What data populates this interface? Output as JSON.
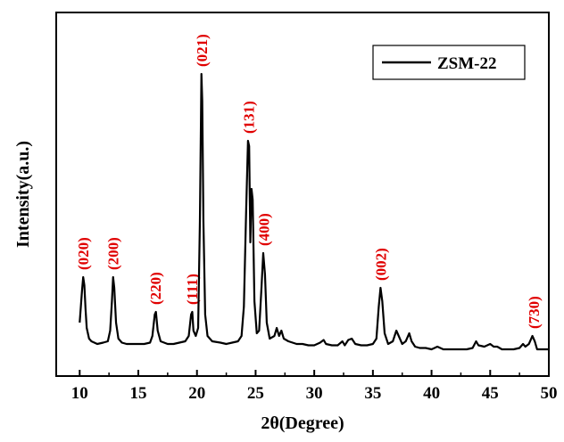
{
  "chart_data": {
    "type": "line",
    "xlabel": "2θ(Degree)",
    "ylabel": "Intensity(a.u.)",
    "xlim": [
      8,
      50
    ],
    "ylim": [
      -0.08,
      1.28
    ],
    "x_ticks": [
      10,
      15,
      20,
      25,
      30,
      35,
      40,
      45,
      50
    ],
    "y_ticks_shown": false,
    "grid": false,
    "legend_position": "top-right",
    "colors": {
      "line": "#000000",
      "annotation": "#e00000",
      "axes": "#000000"
    },
    "series": [
      {
        "name": "ZSM-22",
        "points": [
          [
            10.0,
            0.12
          ],
          [
            10.1,
            0.18
          ],
          [
            10.2,
            0.24
          ],
          [
            10.3,
            0.29
          ],
          [
            10.4,
            0.26
          ],
          [
            10.5,
            0.17
          ],
          [
            10.6,
            0.1
          ],
          [
            10.8,
            0.06
          ],
          [
            11.0,
            0.05
          ],
          [
            11.5,
            0.04
          ],
          [
            12.0,
            0.045
          ],
          [
            12.4,
            0.05
          ],
          [
            12.6,
            0.09
          ],
          [
            12.75,
            0.2
          ],
          [
            12.85,
            0.29
          ],
          [
            12.95,
            0.25
          ],
          [
            13.1,
            0.12
          ],
          [
            13.3,
            0.06
          ],
          [
            13.6,
            0.045
          ],
          [
            14.0,
            0.04
          ],
          [
            14.5,
            0.04
          ],
          [
            15.0,
            0.04
          ],
          [
            15.5,
            0.04
          ],
          [
            16.0,
            0.045
          ],
          [
            16.2,
            0.07
          ],
          [
            16.4,
            0.15
          ],
          [
            16.5,
            0.16
          ],
          [
            16.65,
            0.09
          ],
          [
            16.9,
            0.05
          ],
          [
            17.5,
            0.04
          ],
          [
            18.0,
            0.04
          ],
          [
            18.5,
            0.045
          ],
          [
            19.0,
            0.05
          ],
          [
            19.3,
            0.07
          ],
          [
            19.5,
            0.15
          ],
          [
            19.6,
            0.16
          ],
          [
            19.7,
            0.09
          ],
          [
            19.9,
            0.07
          ],
          [
            20.1,
            0.1
          ],
          [
            20.25,
            0.5
          ],
          [
            20.38,
            1.05
          ],
          [
            20.45,
            0.95
          ],
          [
            20.55,
            0.5
          ],
          [
            20.7,
            0.15
          ],
          [
            20.9,
            0.07
          ],
          [
            21.3,
            0.05
          ],
          [
            22.0,
            0.045
          ],
          [
            22.5,
            0.04
          ],
          [
            23.0,
            0.045
          ],
          [
            23.5,
            0.05
          ],
          [
            23.8,
            0.07
          ],
          [
            24.0,
            0.18
          ],
          [
            24.2,
            0.55
          ],
          [
            24.35,
            0.8
          ],
          [
            24.45,
            0.78
          ],
          [
            24.55,
            0.42
          ],
          [
            24.65,
            0.62
          ],
          [
            24.75,
            0.58
          ],
          [
            24.9,
            0.2
          ],
          [
            25.1,
            0.08
          ],
          [
            25.3,
            0.09
          ],
          [
            25.5,
            0.25
          ],
          [
            25.65,
            0.38
          ],
          [
            25.8,
            0.3
          ],
          [
            25.95,
            0.12
          ],
          [
            26.2,
            0.06
          ],
          [
            26.6,
            0.07
          ],
          [
            26.8,
            0.1
          ],
          [
            27.0,
            0.07
          ],
          [
            27.2,
            0.09
          ],
          [
            27.4,
            0.06
          ],
          [
            27.8,
            0.05
          ],
          [
            28.5,
            0.04
          ],
          [
            29.0,
            0.04
          ],
          [
            29.5,
            0.035
          ],
          [
            30.0,
            0.035
          ],
          [
            30.5,
            0.045
          ],
          [
            30.8,
            0.055
          ],
          [
            31.0,
            0.04
          ],
          [
            31.5,
            0.035
          ],
          [
            32.0,
            0.035
          ],
          [
            32.4,
            0.05
          ],
          [
            32.6,
            0.035
          ],
          [
            32.9,
            0.055
          ],
          [
            33.2,
            0.06
          ],
          [
            33.5,
            0.04
          ],
          [
            34.0,
            0.035
          ],
          [
            34.5,
            0.035
          ],
          [
            35.0,
            0.04
          ],
          [
            35.3,
            0.06
          ],
          [
            35.5,
            0.18
          ],
          [
            35.65,
            0.25
          ],
          [
            35.8,
            0.2
          ],
          [
            36.0,
            0.08
          ],
          [
            36.3,
            0.04
          ],
          [
            36.7,
            0.05
          ],
          [
            37.0,
            0.09
          ],
          [
            37.2,
            0.07
          ],
          [
            37.5,
            0.04
          ],
          [
            37.8,
            0.05
          ],
          [
            38.1,
            0.08
          ],
          [
            38.3,
            0.05
          ],
          [
            38.6,
            0.03
          ],
          [
            39.0,
            0.025
          ],
          [
            39.5,
            0.025
          ],
          [
            40.0,
            0.02
          ],
          [
            40.5,
            0.03
          ],
          [
            41.0,
            0.02
          ],
          [
            41.5,
            0.02
          ],
          [
            42.0,
            0.02
          ],
          [
            42.5,
            0.02
          ],
          [
            43.0,
            0.02
          ],
          [
            43.5,
            0.025
          ],
          [
            43.8,
            0.05
          ],
          [
            44.0,
            0.035
          ],
          [
            44.5,
            0.03
          ],
          [
            45.0,
            0.04
          ],
          [
            45.3,
            0.03
          ],
          [
            45.6,
            0.03
          ],
          [
            46.0,
            0.02
          ],
          [
            46.5,
            0.02
          ],
          [
            47.0,
            0.02
          ],
          [
            47.5,
            0.025
          ],
          [
            47.8,
            0.04
          ],
          [
            48.0,
            0.03
          ],
          [
            48.3,
            0.04
          ],
          [
            48.6,
            0.07
          ],
          [
            48.8,
            0.05
          ],
          [
            49.0,
            0.02
          ],
          [
            49.5,
            0.02
          ],
          [
            50.0,
            0.02
          ]
        ]
      }
    ],
    "annotations": [
      {
        "text": "(020)",
        "x": 10.3
      },
      {
        "text": "(200)",
        "x": 12.85
      },
      {
        "text": "(220)",
        "x": 16.45
      },
      {
        "text": "(111)",
        "x": 19.55
      },
      {
        "text": "(021)",
        "x": 20.4
      },
      {
        "text": "(131)",
        "x": 24.4
      },
      {
        "text": "(400)",
        "x": 25.7
      },
      {
        "text": "(002)",
        "x": 35.65
      },
      {
        "text": "(730)",
        "x": 48.7
      }
    ]
  }
}
